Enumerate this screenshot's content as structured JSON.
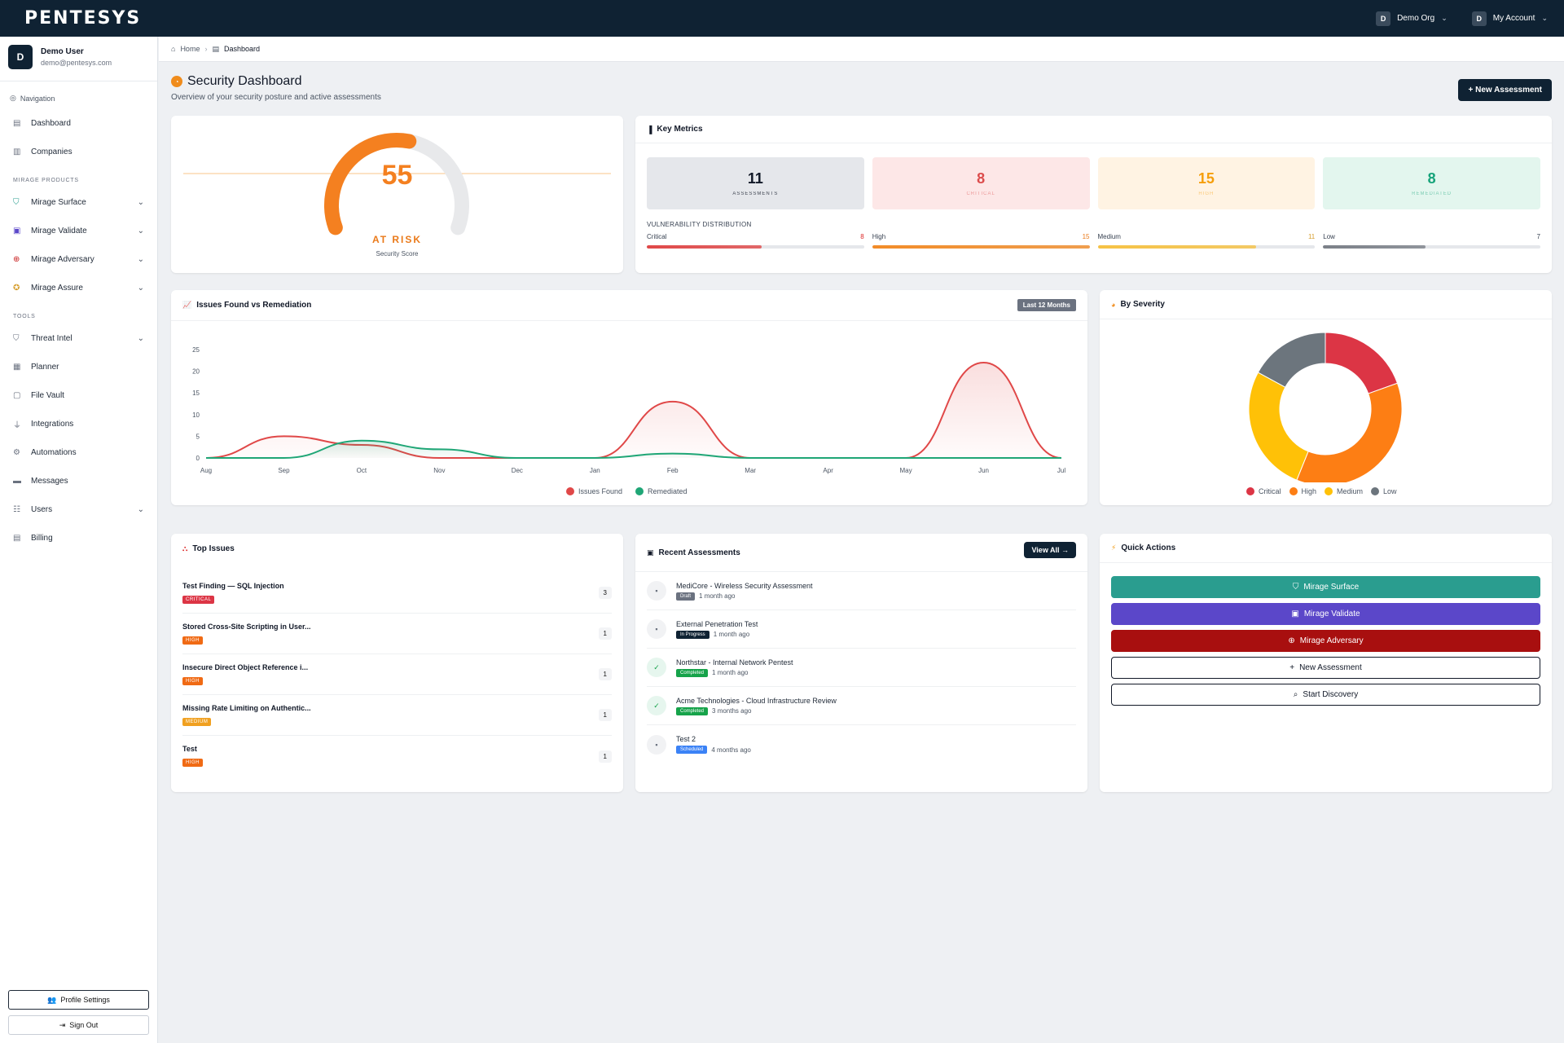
{
  "app": {
    "logo": "PENTESYS"
  },
  "topbar": {
    "org": {
      "avatar": "D",
      "label": "Demo Org"
    },
    "account": {
      "avatar": "D",
      "label": "My Account"
    }
  },
  "sidebar": {
    "user": {
      "avatar": "D",
      "name": "Demo User",
      "email": "demo@pentesys.com"
    },
    "nav_heading": "Navigation",
    "items_main": [
      {
        "label": "Dashboard",
        "icon": "chart-icon"
      },
      {
        "label": "Companies",
        "icon": "building-icon"
      }
    ],
    "section_products": "MIRAGE PRODUCTS",
    "items_products": [
      {
        "label": "Mirage Surface",
        "icon": "shield-icon",
        "color": "#2a9d8f"
      },
      {
        "label": "Mirage Validate",
        "icon": "clipboard-icon",
        "color": "#5b47c9"
      },
      {
        "label": "Mirage Adversary",
        "icon": "target-icon",
        "color": "#c81e1e"
      },
      {
        "label": "Mirage Assure",
        "icon": "badge-icon",
        "color": "#d69e2e"
      }
    ],
    "section_tools": "TOOLS",
    "items_tools": [
      {
        "label": "Threat Intel",
        "icon": "shield-icon",
        "chevron": true
      },
      {
        "label": "Planner",
        "icon": "calendar-icon",
        "chevron": false
      },
      {
        "label": "File Vault",
        "icon": "vault-icon",
        "chevron": false
      },
      {
        "label": "Integrations",
        "icon": "plug-icon",
        "chevron": false
      },
      {
        "label": "Automations",
        "icon": "robot-icon",
        "chevron": false
      },
      {
        "label": "Messages",
        "icon": "message-icon",
        "chevron": false
      },
      {
        "label": "Users",
        "icon": "users-icon",
        "chevron": true
      },
      {
        "label": "Billing",
        "icon": "receipt-icon",
        "chevron": false
      }
    ],
    "profile_label": "Profile Settings",
    "signout_label": "Sign Out"
  },
  "breadcrumb": {
    "home": "Home",
    "current": "Dashboard"
  },
  "header": {
    "title": "Security Dashboard",
    "subtitle": "Overview of your security posture and active assessments",
    "new_assessment": "New Assessment"
  },
  "gauge": {
    "score": 55,
    "max": 100,
    "status": "AT RISK",
    "label": "Security Score",
    "color": "#f48020"
  },
  "metrics": {
    "title": "Key Metrics",
    "cards": [
      {
        "value": "11",
        "label": "ASSESSMENTS",
        "bg": "#e5e7eb",
        "fg": "#111827"
      },
      {
        "value": "8",
        "label": "CRITICAL",
        "bg": "#fde7e7",
        "fg": "#dc4c4c"
      },
      {
        "value": "15",
        "label": "HIGH",
        "bg": "#fff3e3",
        "fg": "#f59e0b"
      },
      {
        "value": "8",
        "label": "REMEDIATED",
        "bg": "#e3f6ee",
        "fg": "#16a37a"
      }
    ],
    "dist_title": "VULNERABILITY DISTRIBUTION",
    "dist": [
      {
        "label": "Critical",
        "value": "8",
        "fraction": 0.53,
        "color": "#e04848",
        "numColor": "#dc2626"
      },
      {
        "label": "High",
        "value": "15",
        "fraction": 1.0,
        "color": "#f28c28",
        "numColor": "#ea7a1a"
      },
      {
        "label": "Medium",
        "value": "11",
        "fraction": 0.73,
        "color": "#f6c244",
        "numColor": "#d69e2e"
      },
      {
        "label": "Low",
        "value": "7",
        "fraction": 0.47,
        "color": "#7b8088",
        "numColor": "#374151"
      }
    ]
  },
  "trend": {
    "title": "Issues Found vs Remediation",
    "range": "Last 12 Months"
  },
  "chart_data": [
    {
      "type": "area",
      "title": "Issues Found vs Remediation",
      "categories": [
        "Aug",
        "Sep",
        "Oct",
        "Nov",
        "Dec",
        "Jan",
        "Feb",
        "Mar",
        "Apr",
        "May",
        "Jun",
        "Jul"
      ],
      "yticks": [
        0,
        5,
        10,
        15,
        20,
        25
      ],
      "ylim": [
        0,
        25
      ],
      "legend_position": "bottom",
      "series": [
        {
          "name": "Issues Found",
          "color": "#e04848",
          "values": [
            0,
            5,
            3,
            0,
            0,
            0,
            13,
            0,
            0,
            0,
            22,
            0
          ]
        },
        {
          "name": "Remediated",
          "color": "#1fa676",
          "values": [
            0,
            0,
            4,
            2,
            0,
            0,
            1,
            0,
            0,
            0,
            0,
            0
          ]
        }
      ]
    },
    {
      "type": "pie",
      "title": "By Severity",
      "legend_position": "bottom",
      "slices": [
        {
          "name": "Critical",
          "value": 8,
          "color": "#dc3545"
        },
        {
          "name": "High",
          "value": 15,
          "color": "#fd7e14"
        },
        {
          "name": "Medium",
          "value": 11,
          "color": "#ffc107"
        },
        {
          "name": "Low",
          "value": 7,
          "color": "#6c757d"
        }
      ]
    }
  ],
  "severity": {
    "title": "By Severity"
  },
  "top_issues": {
    "title": "Top Issues",
    "items": [
      {
        "title": "Test Finding — SQL Injection",
        "badge": "CRITICAL",
        "badge_color": "#dc3545",
        "count": "3"
      },
      {
        "title": "Stored Cross-Site Scripting in User...",
        "badge": "HIGH",
        "badge_color": "#f06a14",
        "count": "1"
      },
      {
        "title": "Insecure Direct Object Reference i...",
        "badge": "HIGH",
        "badge_color": "#f06a14",
        "count": "1"
      },
      {
        "title": "Missing Rate Limiting on Authentic...",
        "badge": "MEDIUM",
        "badge_color": "#f0a020",
        "count": "1"
      },
      {
        "title": "Test",
        "badge": "HIGH",
        "badge_color": "#f06a14",
        "count": "1"
      }
    ]
  },
  "recent": {
    "title": "Recent Assessments",
    "view_all": "View All",
    "items": [
      {
        "title": "MediCore - Wireless Security Assessment",
        "status": "Draft",
        "status_color": "#6b7280",
        "time": "1 month ago",
        "done": false
      },
      {
        "title": "External Penetration Test",
        "status": "In Progress",
        "status_color": "#0f2233",
        "time": "1 month ago",
        "done": false
      },
      {
        "title": "Northstar - Internal Network Pentest",
        "status": "Completed",
        "status_color": "#16a34a",
        "time": "1 month ago",
        "done": true
      },
      {
        "title": "Acme Technologies - Cloud Infrastructure Review",
        "status": "Completed",
        "status_color": "#16a34a",
        "time": "3 months ago",
        "done": true
      },
      {
        "title": "Test 2",
        "status": "Scheduled",
        "status_color": "#3b82f6",
        "time": "4 months ago",
        "done": false
      }
    ]
  },
  "quick": {
    "title": "Quick Actions",
    "buttons": [
      {
        "label": "Mirage Surface",
        "icon": "shield-icon",
        "bg": "#2a9d8f",
        "fg": "#ffffff",
        "border": "#2a9d8f"
      },
      {
        "label": "Mirage Validate",
        "icon": "clipboard-icon",
        "bg": "#5b47c9",
        "fg": "#ffffff",
        "border": "#5b47c9"
      },
      {
        "label": "Mirage Adversary",
        "icon": "target-icon",
        "bg": "#a80f0f",
        "fg": "#ffffff",
        "border": "#a80f0f"
      },
      {
        "label": "New Assessment",
        "icon": "plus-icon",
        "bg": "#ffffff",
        "fg": "#111827",
        "border": "#111827"
      },
      {
        "label": "Start Discovery",
        "icon": "search-icon",
        "bg": "#ffffff",
        "fg": "#111827",
        "border": "#111827"
      }
    ]
  }
}
